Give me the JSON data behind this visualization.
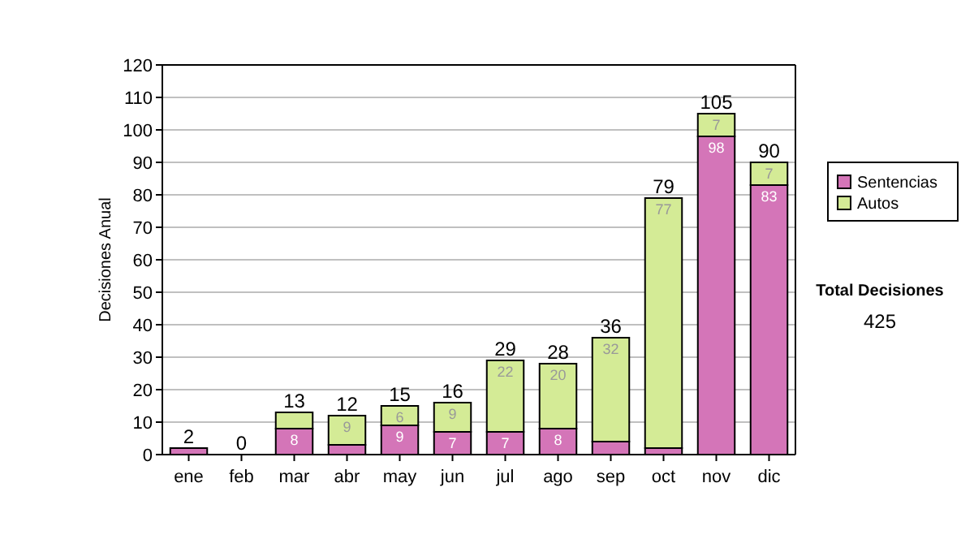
{
  "chart_data": {
    "type": "bar",
    "stacked": true,
    "ylabel": "Decisiones Anual",
    "categories": [
      "ene",
      "feb",
      "mar",
      "abr",
      "may",
      "jun",
      "jul",
      "ago",
      "sep",
      "oct",
      "nov",
      "dic"
    ],
    "series": [
      {
        "name": "Sentencias",
        "color": "#d475b8",
        "values": [
          2,
          0,
          8,
          3,
          9,
          7,
          7,
          8,
          4,
          2,
          98,
          83
        ],
        "value_labels": [
          null,
          null,
          "8",
          null,
          "9",
          "7",
          "7",
          "8",
          null,
          null,
          "98",
          "83"
        ]
      },
      {
        "name": "Autos",
        "color": "#d4eb96",
        "values": [
          0,
          0,
          5,
          9,
          6,
          9,
          22,
          20,
          32,
          77,
          7,
          7
        ],
        "value_labels": [
          null,
          null,
          null,
          "9",
          "6",
          "9",
          "22",
          "20",
          "32",
          "77",
          "7",
          "7"
        ]
      }
    ],
    "totals": [
      "2",
      "0",
      "13",
      "12",
      "15",
      "16",
      "29",
      "28",
      "36",
      "79",
      "105",
      "90"
    ],
    "ylim": [
      0,
      120
    ],
    "yticks": [
      0,
      10,
      20,
      30,
      40,
      50,
      60,
      70,
      80,
      90,
      100,
      110,
      120
    ],
    "grid": "y",
    "legend": "right",
    "annotations": [
      "Total Decisiones",
      "425"
    ]
  }
}
